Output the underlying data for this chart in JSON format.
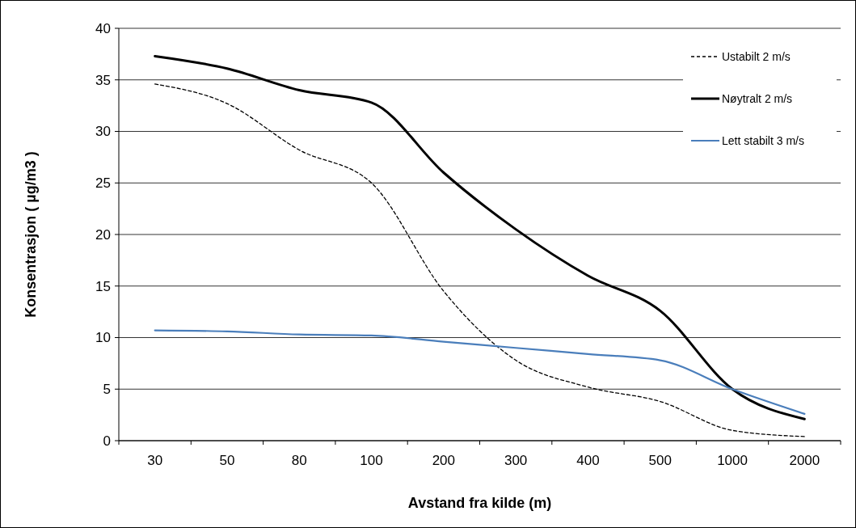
{
  "chart_data": {
    "type": "line",
    "xlabel": "Avstand fra kilde (m)",
    "ylabel": "Konsentrasjon ( µg/m3 )",
    "categories": [
      "30",
      "50",
      "80",
      "100",
      "200",
      "300",
      "400",
      "500",
      "1000",
      "2000"
    ],
    "series": [
      {
        "name": "Ustabilt 2 m/s",
        "color": "#000000",
        "line_style": "dashed",
        "values": [
          34.6,
          32.7,
          28.2,
          25,
          14.5,
          7.8,
          5.2,
          3.8,
          1.0,
          0.4
        ]
      },
      {
        "name": "Nøytralt 2 m/s",
        "color": "#000000",
        "line_style": "solid",
        "values": [
          37.3,
          36.1,
          34,
          32.8,
          26,
          20.5,
          16,
          12.6,
          5,
          2.1
        ]
      },
      {
        "name": "Lett stabilt 3 m/s",
        "color": "#4a7ebb",
        "line_style": "solid",
        "values": [
          10.7,
          10.6,
          10.3,
          10.2,
          9.6,
          9.0,
          8.4,
          7.8,
          5.0,
          2.6
        ]
      }
    ],
    "ylim": [
      0,
      40
    ],
    "yticks": [
      0,
      5,
      10,
      15,
      20,
      25,
      30,
      35,
      40
    ],
    "grid": "y",
    "legend": "top right",
    "marker": "none"
  }
}
